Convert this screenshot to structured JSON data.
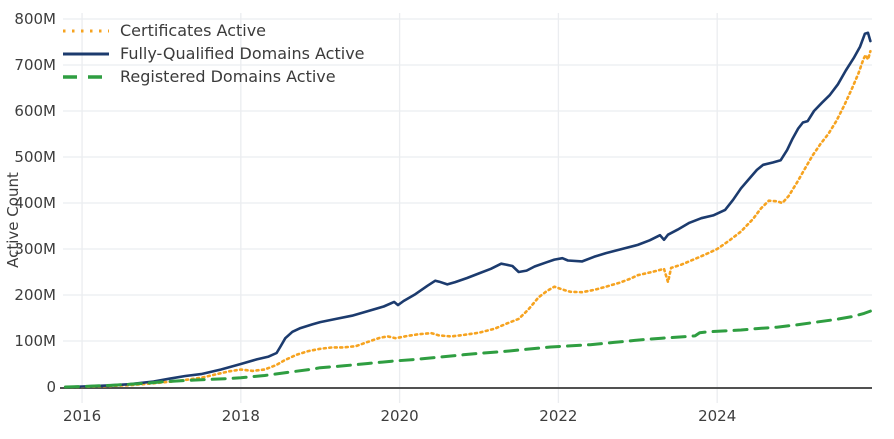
{
  "chart_data": {
    "type": "line",
    "title": "",
    "xlabel": "",
    "ylabel": "Active Count",
    "xlim": [
      2015.76,
      2025.95
    ],
    "ylim": [
      0,
      800
    ],
    "grid": true,
    "legend_position": "top-left",
    "x_ticks": [
      {
        "label": "2016",
        "value": 2016
      },
      {
        "label": "2018",
        "value": 2018
      },
      {
        "label": "2020",
        "value": 2020
      },
      {
        "label": "2022",
        "value": 2022
      },
      {
        "label": "2024",
        "value": 2024
      }
    ],
    "y_ticks": [
      {
        "label": "0",
        "value": 0
      },
      {
        "label": "100M",
        "value": 100
      },
      {
        "label": "200M",
        "value": 200
      },
      {
        "label": "300M",
        "value": 300
      },
      {
        "label": "400M",
        "value": 400
      },
      {
        "label": "500M",
        "value": 500
      },
      {
        "label": "600M",
        "value": 600
      },
      {
        "label": "700M",
        "value": 700
      },
      {
        "label": "800M",
        "value": 800
      }
    ],
    "colors": {
      "grid": "#ebedf0",
      "zeroline": "#515151",
      "text": "#3d3d3d"
    },
    "series": [
      {
        "name": "Certificates Active",
        "color": "#f6a320",
        "dash": "dot",
        "unit": "millions",
        "points": [
          [
            2015.79,
            0
          ],
          [
            2016.0,
            0.5
          ],
          [
            2016.3,
            2
          ],
          [
            2016.6,
            4
          ],
          [
            2016.9,
            8
          ],
          [
            2017.2,
            13
          ],
          [
            2017.5,
            20
          ],
          [
            2017.7,
            28
          ],
          [
            2017.85,
            34
          ],
          [
            2018.0,
            38
          ],
          [
            2018.15,
            35
          ],
          [
            2018.3,
            38
          ],
          [
            2018.45,
            48
          ],
          [
            2018.55,
            58
          ],
          [
            2018.7,
            70
          ],
          [
            2018.85,
            78
          ],
          [
            2019.0,
            83
          ],
          [
            2019.15,
            86
          ],
          [
            2019.3,
            86
          ],
          [
            2019.45,
            89
          ],
          [
            2019.6,
            98
          ],
          [
            2019.75,
            107
          ],
          [
            2019.85,
            110
          ],
          [
            2019.95,
            106
          ],
          [
            2020.1,
            111
          ],
          [
            2020.25,
            115
          ],
          [
            2020.4,
            117
          ],
          [
            2020.5,
            112
          ],
          [
            2020.65,
            110
          ],
          [
            2020.8,
            113
          ],
          [
            2021.0,
            118
          ],
          [
            2021.2,
            127
          ],
          [
            2021.35,
            138
          ],
          [
            2021.5,
            148
          ],
          [
            2021.62,
            168
          ],
          [
            2021.75,
            195
          ],
          [
            2021.85,
            208
          ],
          [
            2021.95,
            218
          ],
          [
            2022.05,
            212
          ],
          [
            2022.15,
            207
          ],
          [
            2022.3,
            206
          ],
          [
            2022.45,
            211
          ],
          [
            2022.6,
            218
          ],
          [
            2022.76,
            226
          ],
          [
            2022.9,
            235
          ],
          [
            2023.0,
            243
          ],
          [
            2023.15,
            249
          ],
          [
            2023.25,
            253
          ],
          [
            2023.33,
            257
          ],
          [
            2023.38,
            228
          ],
          [
            2023.42,
            259
          ],
          [
            2023.55,
            266
          ],
          [
            2023.7,
            277
          ],
          [
            2023.85,
            288
          ],
          [
            2024.0,
            300
          ],
          [
            2024.15,
            318
          ],
          [
            2024.3,
            338
          ],
          [
            2024.45,
            365
          ],
          [
            2024.55,
            388
          ],
          [
            2024.65,
            405
          ],
          [
            2024.75,
            404
          ],
          [
            2024.82,
            400
          ],
          [
            2024.9,
            415
          ],
          [
            2025.0,
            443
          ],
          [
            2025.1,
            473
          ],
          [
            2025.2,
            503
          ],
          [
            2025.3,
            528
          ],
          [
            2025.4,
            550
          ],
          [
            2025.5,
            578
          ],
          [
            2025.6,
            612
          ],
          [
            2025.7,
            650
          ],
          [
            2025.78,
            682
          ],
          [
            2025.84,
            712
          ],
          [
            2025.87,
            722
          ],
          [
            2025.9,
            712
          ],
          [
            2025.93,
            730
          ]
        ]
      },
      {
        "name": "Fully-Qualified Domains Active",
        "color": "#1c3b6e",
        "dash": "solid",
        "unit": "millions",
        "points": [
          [
            2015.79,
            0
          ],
          [
            2016.0,
            1
          ],
          [
            2016.3,
            3
          ],
          [
            2016.6,
            6
          ],
          [
            2016.9,
            12
          ],
          [
            2017.1,
            18
          ],
          [
            2017.3,
            24
          ],
          [
            2017.5,
            28
          ],
          [
            2017.75,
            38
          ],
          [
            2018.0,
            50
          ],
          [
            2018.2,
            60
          ],
          [
            2018.35,
            66
          ],
          [
            2018.45,
            74
          ],
          [
            2018.5,
            88
          ],
          [
            2018.56,
            106
          ],
          [
            2018.65,
            120
          ],
          [
            2018.75,
            128
          ],
          [
            2018.9,
            136
          ],
          [
            2019.0,
            141
          ],
          [
            2019.2,
            148
          ],
          [
            2019.4,
            155
          ],
          [
            2019.6,
            165
          ],
          [
            2019.8,
            175
          ],
          [
            2019.93,
            185
          ],
          [
            2019.98,
            178
          ],
          [
            2020.05,
            187
          ],
          [
            2020.2,
            202
          ],
          [
            2020.35,
            220
          ],
          [
            2020.45,
            231
          ],
          [
            2020.5,
            229
          ],
          [
            2020.6,
            223
          ],
          [
            2020.7,
            228
          ],
          [
            2020.85,
            237
          ],
          [
            2021.0,
            247
          ],
          [
            2021.15,
            257
          ],
          [
            2021.28,
            268
          ],
          [
            2021.34,
            266
          ],
          [
            2021.42,
            263
          ],
          [
            2021.5,
            250
          ],
          [
            2021.6,
            253
          ],
          [
            2021.7,
            262
          ],
          [
            2021.85,
            271
          ],
          [
            2021.95,
            277
          ],
          [
            2022.05,
            280
          ],
          [
            2022.12,
            275
          ],
          [
            2022.3,
            273
          ],
          [
            2022.45,
            283
          ],
          [
            2022.6,
            291
          ],
          [
            2022.8,
            300
          ],
          [
            2023.0,
            309
          ],
          [
            2023.15,
            319
          ],
          [
            2023.28,
            330
          ],
          [
            2023.33,
            320
          ],
          [
            2023.38,
            331
          ],
          [
            2023.5,
            342
          ],
          [
            2023.65,
            357
          ],
          [
            2023.8,
            367
          ],
          [
            2023.95,
            373
          ],
          [
            2024.1,
            385
          ],
          [
            2024.2,
            407
          ],
          [
            2024.3,
            432
          ],
          [
            2024.4,
            452
          ],
          [
            2024.5,
            472
          ],
          [
            2024.58,
            483
          ],
          [
            2024.7,
            488
          ],
          [
            2024.8,
            493
          ],
          [
            2024.88,
            515
          ],
          [
            2024.95,
            540
          ],
          [
            2025.02,
            562
          ],
          [
            2025.08,
            575
          ],
          [
            2025.14,
            578
          ],
          [
            2025.22,
            600
          ],
          [
            2025.32,
            618
          ],
          [
            2025.42,
            635
          ],
          [
            2025.52,
            658
          ],
          [
            2025.62,
            688
          ],
          [
            2025.72,
            715
          ],
          [
            2025.8,
            740
          ],
          [
            2025.86,
            768
          ],
          [
            2025.9,
            770
          ],
          [
            2025.93,
            752
          ]
        ]
      },
      {
        "name": "Registered Domains Active",
        "color": "#2f9e41",
        "dash": "dash",
        "unit": "millions",
        "points": [
          [
            2015.79,
            0
          ],
          [
            2016.0,
            1
          ],
          [
            2016.4,
            4
          ],
          [
            2016.8,
            8
          ],
          [
            2017.0,
            11
          ],
          [
            2017.4,
            15
          ],
          [
            2017.8,
            18
          ],
          [
            2018.0,
            20
          ],
          [
            2018.3,
            25
          ],
          [
            2018.6,
            32
          ],
          [
            2018.9,
            39
          ],
          [
            2019.0,
            42
          ],
          [
            2019.3,
            46
          ],
          [
            2019.6,
            51
          ],
          [
            2019.9,
            56
          ],
          [
            2020.2,
            60
          ],
          [
            2020.5,
            65
          ],
          [
            2020.8,
            70
          ],
          [
            2021.0,
            73
          ],
          [
            2021.3,
            77
          ],
          [
            2021.6,
            82
          ],
          [
            2021.9,
            87
          ],
          [
            2022.1,
            89
          ],
          [
            2022.4,
            92
          ],
          [
            2022.7,
            97
          ],
          [
            2023.0,
            102
          ],
          [
            2023.3,
            106
          ],
          [
            2023.55,
            109
          ],
          [
            2023.72,
            111
          ],
          [
            2023.78,
            118
          ],
          [
            2023.88,
            120
          ],
          [
            2024.1,
            122
          ],
          [
            2024.3,
            124
          ],
          [
            2024.5,
            127
          ],
          [
            2024.75,
            130
          ],
          [
            2025.0,
            135
          ],
          [
            2025.25,
            141
          ],
          [
            2025.5,
            147
          ],
          [
            2025.7,
            153
          ],
          [
            2025.85,
            160
          ],
          [
            2025.93,
            165
          ]
        ]
      }
    ]
  }
}
